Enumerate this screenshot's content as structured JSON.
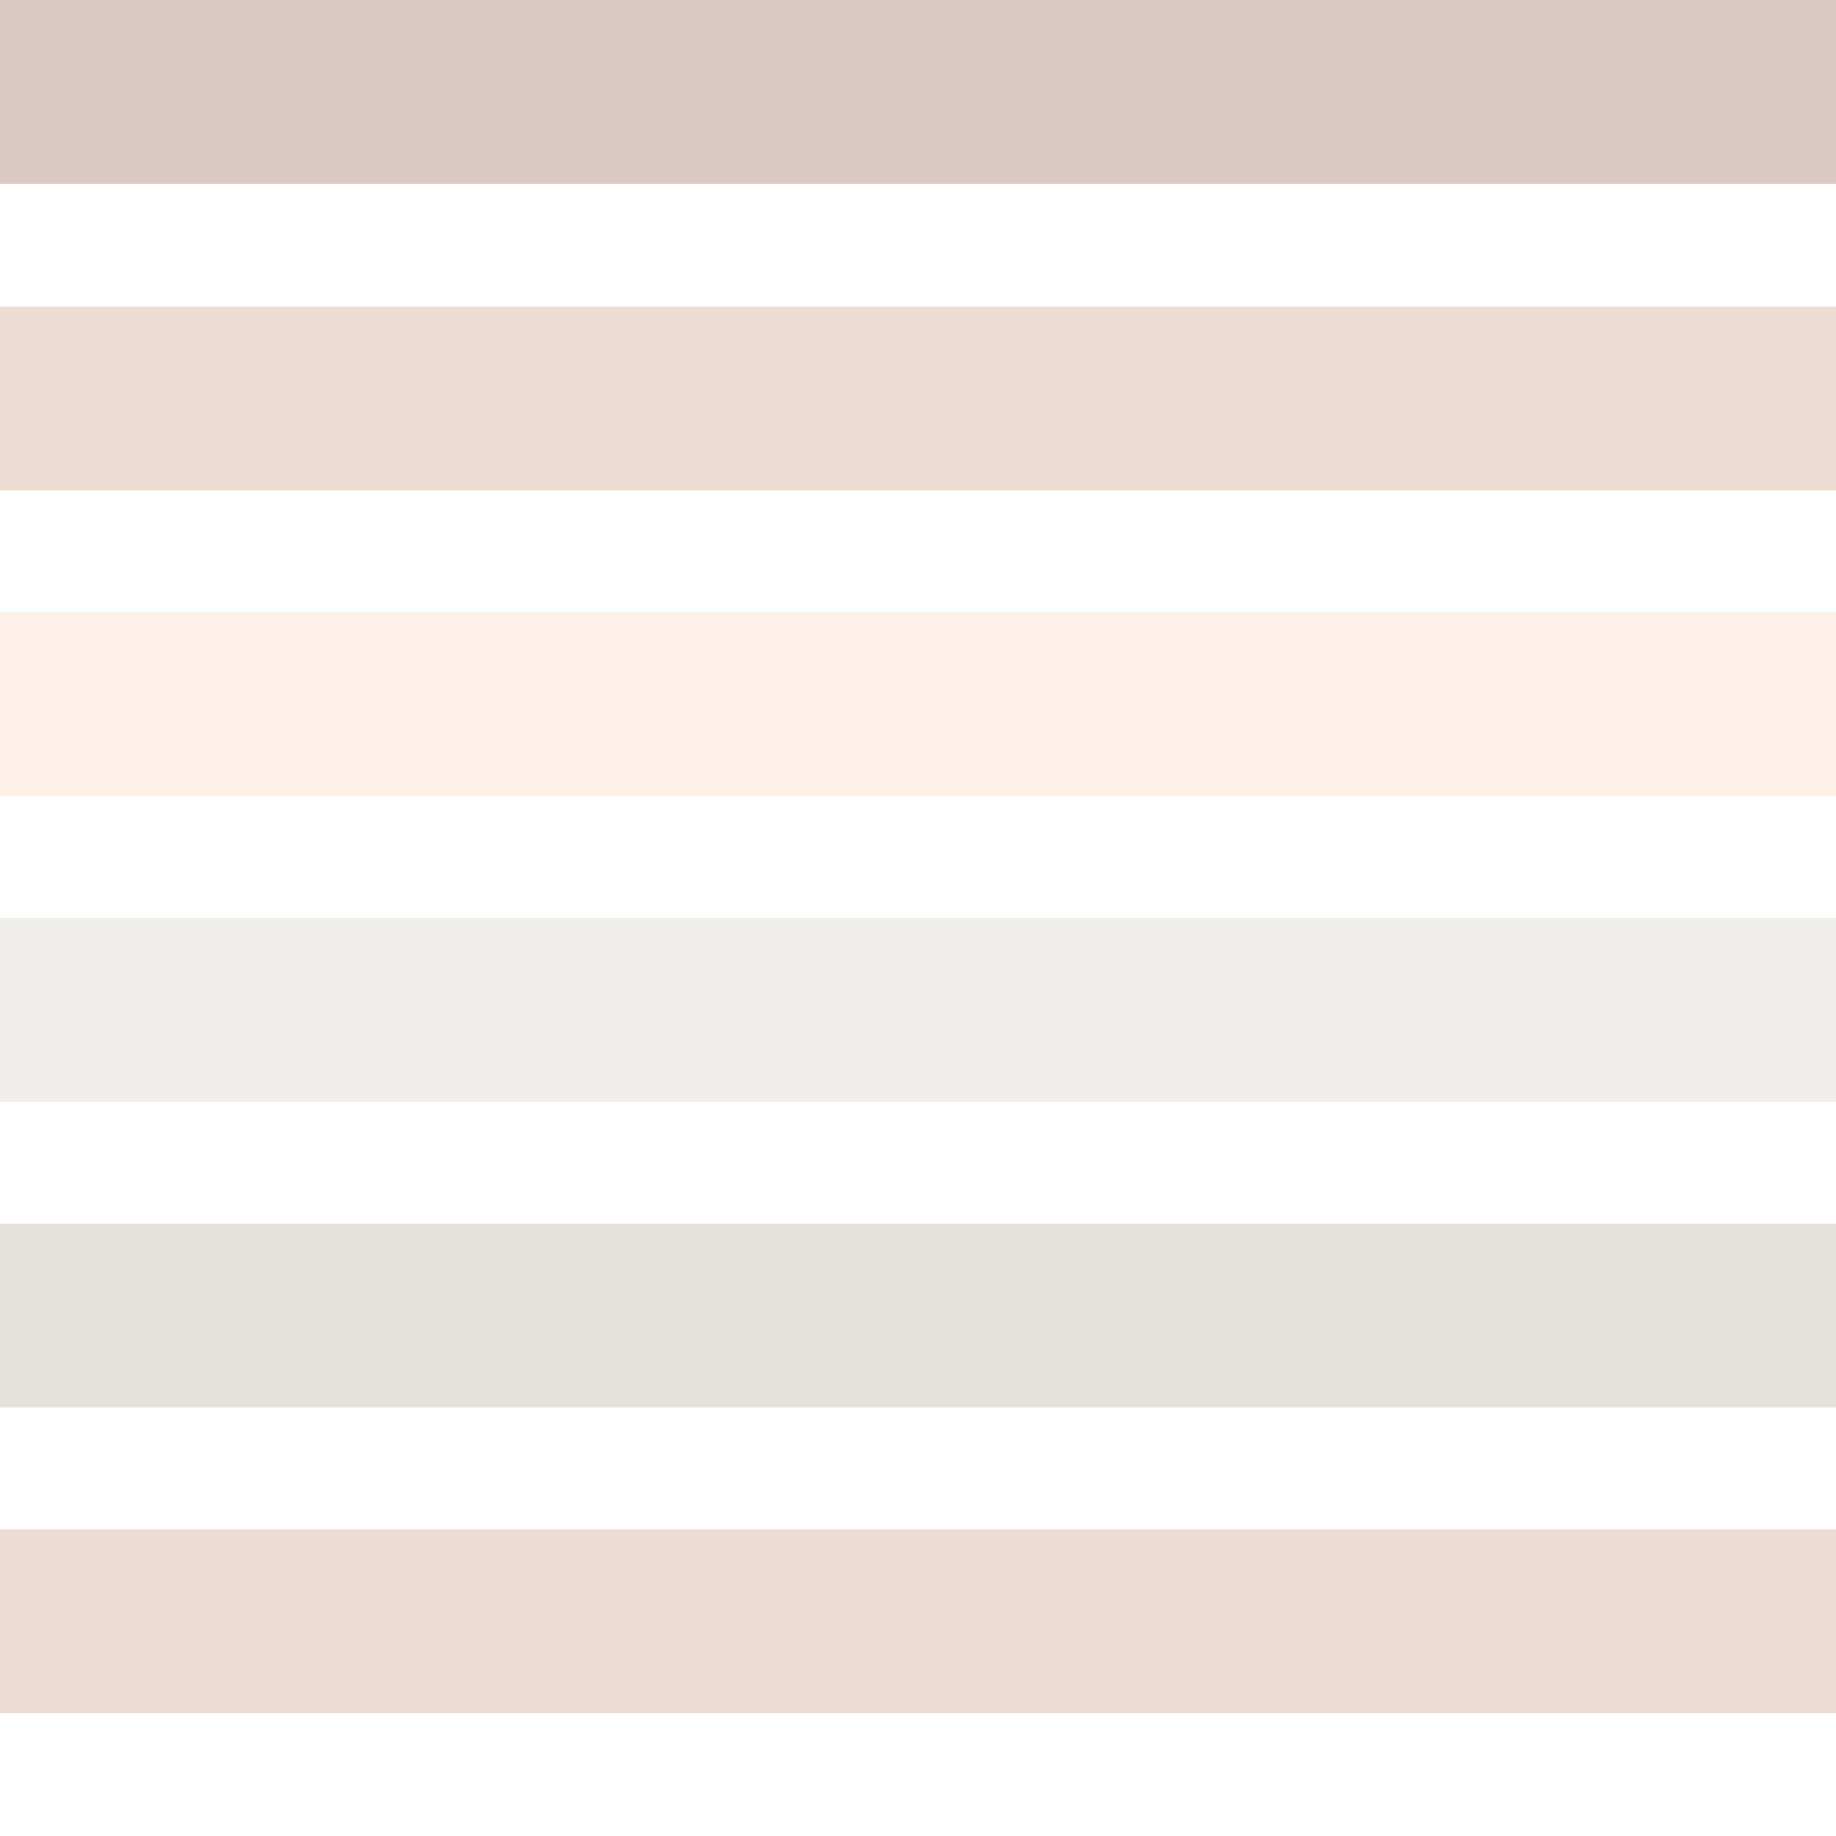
{
  "background": "#ffffff",
  "stripes": [
    {
      "color": "#dcc8c2"
    },
    {
      "color": "#eddcd4"
    },
    {
      "color": "#fdf0e8"
    },
    {
      "color": "#f0eeea"
    },
    {
      "color": "#e5e1dd"
    },
    {
      "color": "#eddcd4"
    }
  ]
}
